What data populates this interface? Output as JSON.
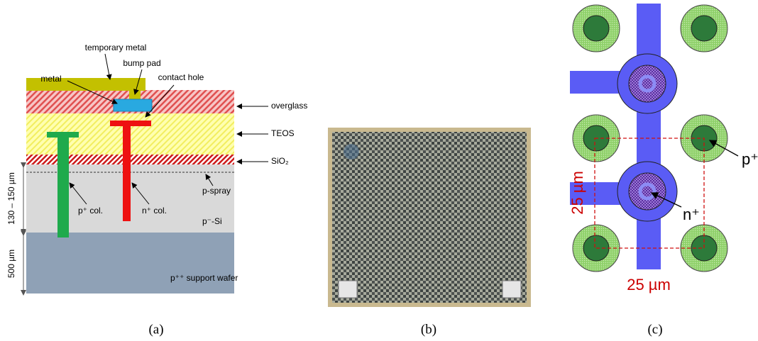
{
  "panel_a": {
    "caption": "(a)",
    "labels": {
      "temporary_metal": "temporary metal",
      "bump_pad": "bump pad",
      "metal": "metal",
      "contact_hole": "contact hole",
      "overglass": "overglass",
      "teos": "TEOS",
      "sio2": "SiO₂",
      "thickness_bulk": "130 – 150 µm",
      "p_spray": "p-spray",
      "p_col": "p⁺ col.",
      "n_col": "n⁺ col.",
      "p_si": "p⁻-Si",
      "thickness_wafer": "500 µm",
      "support_wafer": "p⁺⁺ support wafer"
    }
  },
  "panel_b": {
    "caption": "(b)"
  },
  "panel_c": {
    "caption": "(c)",
    "labels": {
      "pitch_y": "25 µm",
      "pitch_x": "25 µm",
      "p_plus": "p⁺",
      "n_plus": "n⁺"
    }
  }
}
